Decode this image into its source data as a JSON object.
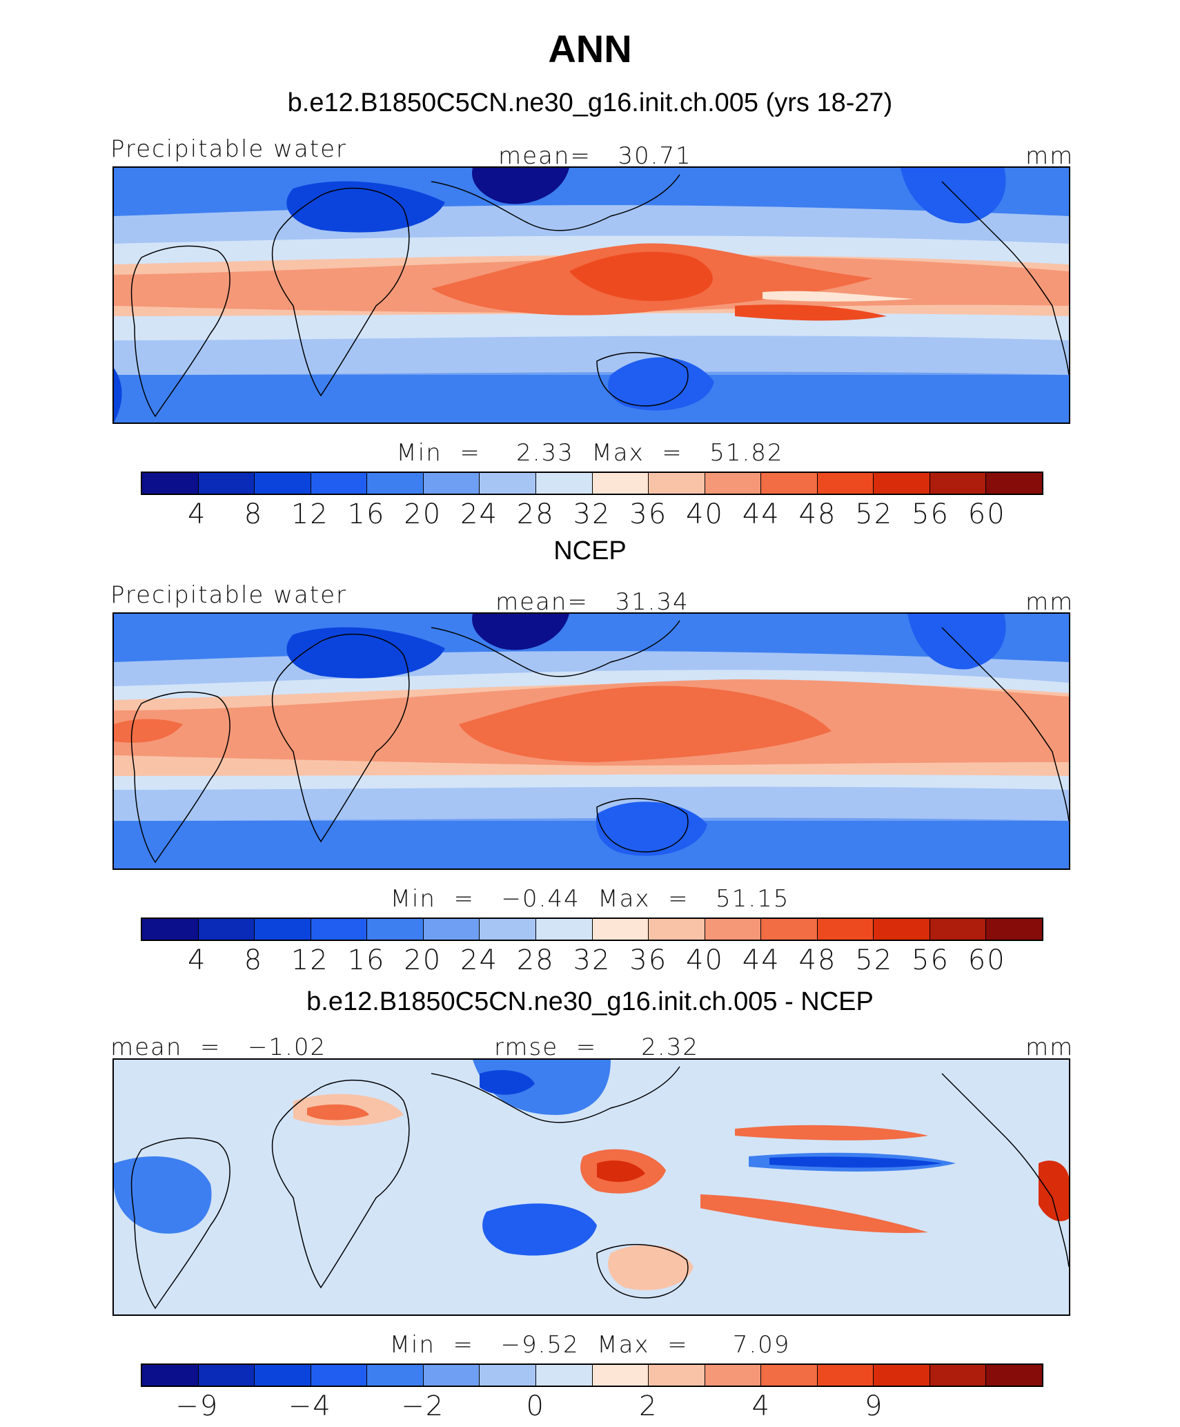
{
  "title": "ANN",
  "colormap": [
    "#0b0f8c",
    "#0a2ab8",
    "#0b44dd",
    "#1f5ef0",
    "#3d7ff0",
    "#6f9ff3",
    "#a6c5f5",
    "#d3e4f7",
    "#fde6d5",
    "#f9c3a8",
    "#f59877",
    "#f26c44",
    "#ee4a1f",
    "#d92c0a",
    "#ae1c0b",
    "#850c08"
  ],
  "panels": [
    {
      "title": "b.e12.B1850C5CN.ne30_g16.init.ch.005 (yrs 18-27)",
      "left_label": "Precipitable water",
      "center_label": "mean=   30.71",
      "units": "mm",
      "minmax": "Min  =    2.33  Max  =   51.82",
      "ticks": [
        "4",
        "8",
        "12",
        "16",
        "20",
        "24",
        "28",
        "32",
        "36",
        "40",
        "44",
        "48",
        "52",
        "56",
        "60"
      ]
    },
    {
      "title": "NCEP",
      "left_label": "Precipitable water",
      "center_label": "mean=   31.34",
      "units": "mm",
      "minmax": "Min  =   −0.44  Max  =   51.15",
      "ticks": [
        "4",
        "8",
        "12",
        "16",
        "20",
        "24",
        "28",
        "32",
        "36",
        "40",
        "44",
        "48",
        "52",
        "56",
        "60"
      ]
    },
    {
      "title": "b.e12.B1850C5CN.ne30_g16.init.ch.005 - NCEP",
      "left_label": "mean  =   −1.02",
      "center_label": "rmse  =     2.32",
      "units": "mm",
      "minmax": "Min  =   −9.52  Max  =     7.09",
      "ticks": [
        "−9",
        "",
        "−4",
        "",
        "−2",
        "",
        "0",
        "",
        "2",
        "",
        "4",
        "",
        "9",
        "",
        ""
      ]
    }
  ]
}
